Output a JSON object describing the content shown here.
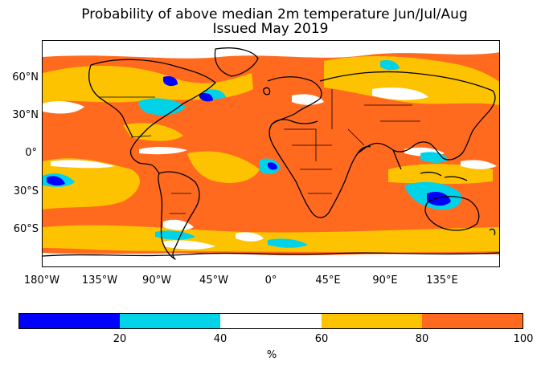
{
  "title": {
    "line1": "Probability of above median 2m temperature Jun/Jul/Aug",
    "line2": "Issued May 2019"
  },
  "map": {
    "projection": "cylindrical",
    "lon_range": [
      -180,
      180
    ],
    "lat_range": [
      -90,
      90
    ],
    "y_ticks": [
      "60°N",
      "30°N",
      "0°",
      "30°S",
      "60°S"
    ],
    "x_ticks": [
      "180°W",
      "135°W",
      "90°W",
      "45°W",
      "0°",
      "45°E",
      "90°E",
      "135°E"
    ],
    "background_category": "80-100",
    "features": [
      "coastlines",
      "country-borders"
    ]
  },
  "colorbar": {
    "segments": [
      {
        "range": "0-20",
        "color": "#0000ff"
      },
      {
        "range": "20-40",
        "color": "#00d2e8"
      },
      {
        "range": "40-60",
        "color": "#ffffff"
      },
      {
        "range": "60-80",
        "color": "#fdc300"
      },
      {
        "range": "80-100",
        "color": "#ff6a1f"
      }
    ],
    "tick_labels": [
      "20",
      "40",
      "60",
      "80",
      "100"
    ],
    "unit": "%"
  }
}
